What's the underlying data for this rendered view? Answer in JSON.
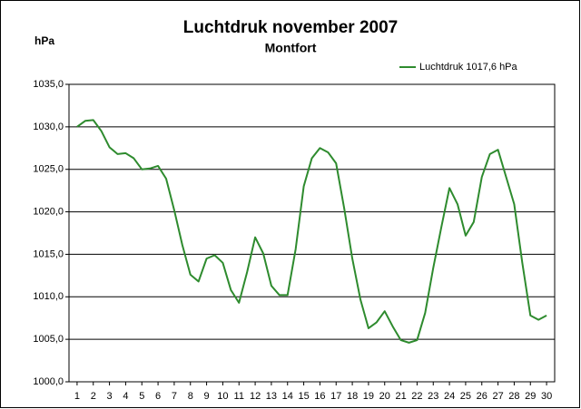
{
  "chart_data": {
    "type": "line",
    "title": "Luchtdruk november 2007",
    "subtitle": "Montfort",
    "y_label": "hPa",
    "x": [
      1,
      1.5,
      2,
      2.5,
      3,
      3.5,
      4,
      4.5,
      5,
      5.5,
      6,
      6.5,
      7,
      7.5,
      8,
      8.5,
      9,
      9.5,
      10,
      10.5,
      11,
      11.5,
      12,
      12.5,
      13,
      13.5,
      14,
      14.5,
      15,
      15.5,
      16,
      16.5,
      17,
      17.5,
      18,
      18.5,
      19,
      19.5,
      20,
      20.5,
      21,
      21.5,
      22,
      22.5,
      23,
      23.5,
      24,
      24.5,
      25,
      25.5,
      26,
      26.5,
      27,
      27.5,
      28,
      28.5,
      29,
      29.5,
      30
    ],
    "series": [
      {
        "name": "Luchtdruk 1017,6 hPa",
        "color": "#2e8b2e",
        "values": [
          1030.0,
          1030.7,
          1030.8,
          1029.5,
          1027.6,
          1026.8,
          1026.9,
          1026.3,
          1025.0,
          1025.1,
          1025.4,
          1023.9,
          1020.2,
          1016.1,
          1012.6,
          1011.8,
          1014.5,
          1014.9,
          1014.0,
          1010.8,
          1009.3,
          1012.9,
          1017.0,
          1015.1,
          1011.3,
          1010.2,
          1010.2,
          1015.6,
          1023.0,
          1026.3,
          1027.5,
          1027.0,
          1025.7,
          1020.4,
          1014.5,
          1009.7,
          1006.3,
          1007.0,
          1008.3,
          1006.5,
          1004.9,
          1004.6,
          1004.9,
          1008.1,
          1013.4,
          1018.2,
          1022.8,
          1020.9,
          1017.2,
          1018.8,
          1024.1,
          1026.8,
          1027.3,
          1024.1,
          1020.9,
          1014.0,
          1007.8,
          1007.3,
          1007.8
        ]
      }
    ],
    "xlim": [
      0.5,
      30.5
    ],
    "xticks": [
      1,
      2,
      3,
      4,
      5,
      6,
      7,
      8,
      9,
      10,
      11,
      12,
      13,
      14,
      15,
      16,
      17,
      18,
      19,
      20,
      21,
      22,
      23,
      24,
      25,
      26,
      27,
      28,
      29,
      30
    ],
    "ylim": [
      1000,
      1035
    ],
    "yticks": [
      {
        "value": 1000,
        "label": "1000,0"
      },
      {
        "value": 1005,
        "label": "1005,0"
      },
      {
        "value": 1010,
        "label": "1010,0"
      },
      {
        "value": 1015,
        "label": "1015,0"
      },
      {
        "value": 1020,
        "label": "1020,0"
      },
      {
        "value": 1025,
        "label": "1025,0"
      },
      {
        "value": 1030,
        "label": "1030,0"
      },
      {
        "value": 1035,
        "label": "1035,0"
      }
    ],
    "grid": true,
    "legend": "top-right"
  }
}
